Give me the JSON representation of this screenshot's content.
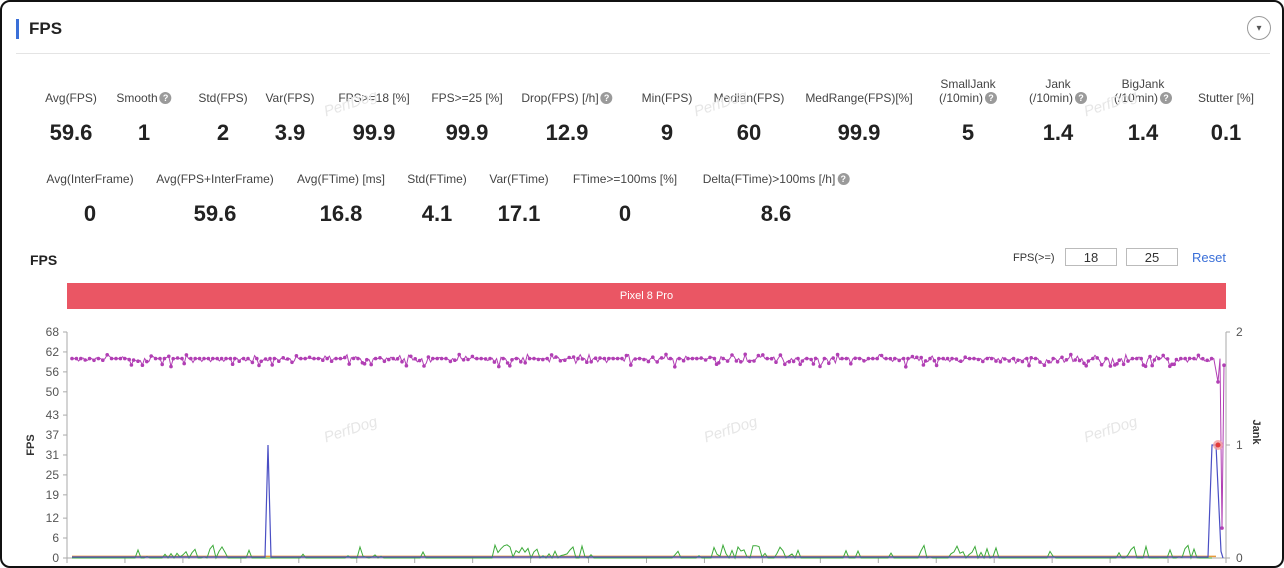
{
  "panel": {
    "title": "FPS",
    "collapse_icon": "▾"
  },
  "metrics_row1": [
    {
      "label": "Avg(FPS)",
      "value": "59.6",
      "help": false
    },
    {
      "label": "Smooth",
      "value": "1",
      "help": true
    },
    {
      "label": "Std(FPS)",
      "value": "2",
      "help": false
    },
    {
      "label": "Var(FPS)",
      "value": "3.9",
      "help": false
    },
    {
      "label": "FPS>=18 [%]",
      "value": "99.9",
      "help": false
    },
    {
      "label": "FPS>=25 [%]",
      "value": "99.9",
      "help": false
    },
    {
      "label": "Drop(FPS) [/h]",
      "value": "12.9",
      "help": true
    },
    {
      "label": "Min(FPS)",
      "value": "9",
      "help": false
    },
    {
      "label": "Median(FPS)",
      "value": "60",
      "help": false
    },
    {
      "label": "MedRange(FPS)[%]",
      "value": "99.9",
      "help": false
    },
    {
      "label": "SmallJank",
      "label2": "(/10min)",
      "value": "5",
      "help": true
    },
    {
      "label": "Jank",
      "label2": "(/10min)",
      "value": "1.4",
      "help": true
    },
    {
      "label": "BigJank",
      "label2": "(/10min)",
      "value": "1.4",
      "help": true
    },
    {
      "label": "Stutter [%]",
      "value": "0.1",
      "help": false
    }
  ],
  "metrics_row2": [
    {
      "label": "Avg(InterFrame)",
      "value": "0",
      "help": false
    },
    {
      "label": "Avg(FPS+InterFrame)",
      "value": "59.6",
      "help": false
    },
    {
      "label": "Avg(FTime) [ms]",
      "value": "16.8",
      "help": false
    },
    {
      "label": "Std(FTime)",
      "value": "4.1",
      "help": false
    },
    {
      "label": "Var(FTime)",
      "value": "17.1",
      "help": false
    },
    {
      "label": "FTime>=100ms [%]",
      "value": "0",
      "help": false
    },
    {
      "label": "Delta(FTime)>100ms [/h]",
      "value": "8.6",
      "help": true
    }
  ],
  "chart_header": {
    "title": "FPS",
    "threshold_label": "FPS(>=)",
    "threshold1": "18",
    "threshold2": "25",
    "reset_label": "Reset"
  },
  "device": {
    "name": "Pixel 8 Pro",
    "color": "#ea5664"
  },
  "watermark": "PerfDog",
  "chart_data": {
    "type": "line",
    "ylabel": "FPS",
    "y2label": "Jank",
    "ylim": [
      0,
      68
    ],
    "y_ticks": [
      "68",
      "62",
      "56",
      "50",
      "43",
      "37",
      "31",
      "25",
      "19",
      "12",
      "6",
      "0"
    ],
    "y2lim": [
      0,
      2
    ],
    "y2_ticks": [
      "2",
      "1",
      "0"
    ],
    "grid": false,
    "series": [
      {
        "role": "fps",
        "color": "#b13fb4",
        "baseline": 60,
        "values_note": "≈58-61 throughout, drops to ~53 then ~9 at end"
      },
      {
        "role": "jank",
        "color": "#4a4fc4",
        "spikes": [
          {
            "x": 0.17,
            "y": 34
          },
          {
            "x": 0.99,
            "y": 34
          }
        ]
      },
      {
        "role": "smalljank",
        "color": "#3daa3a",
        "range": [
          0,
          4
        ]
      },
      {
        "role": "bigjank",
        "color": "#e89a3c",
        "value": 0.5
      }
    ]
  }
}
